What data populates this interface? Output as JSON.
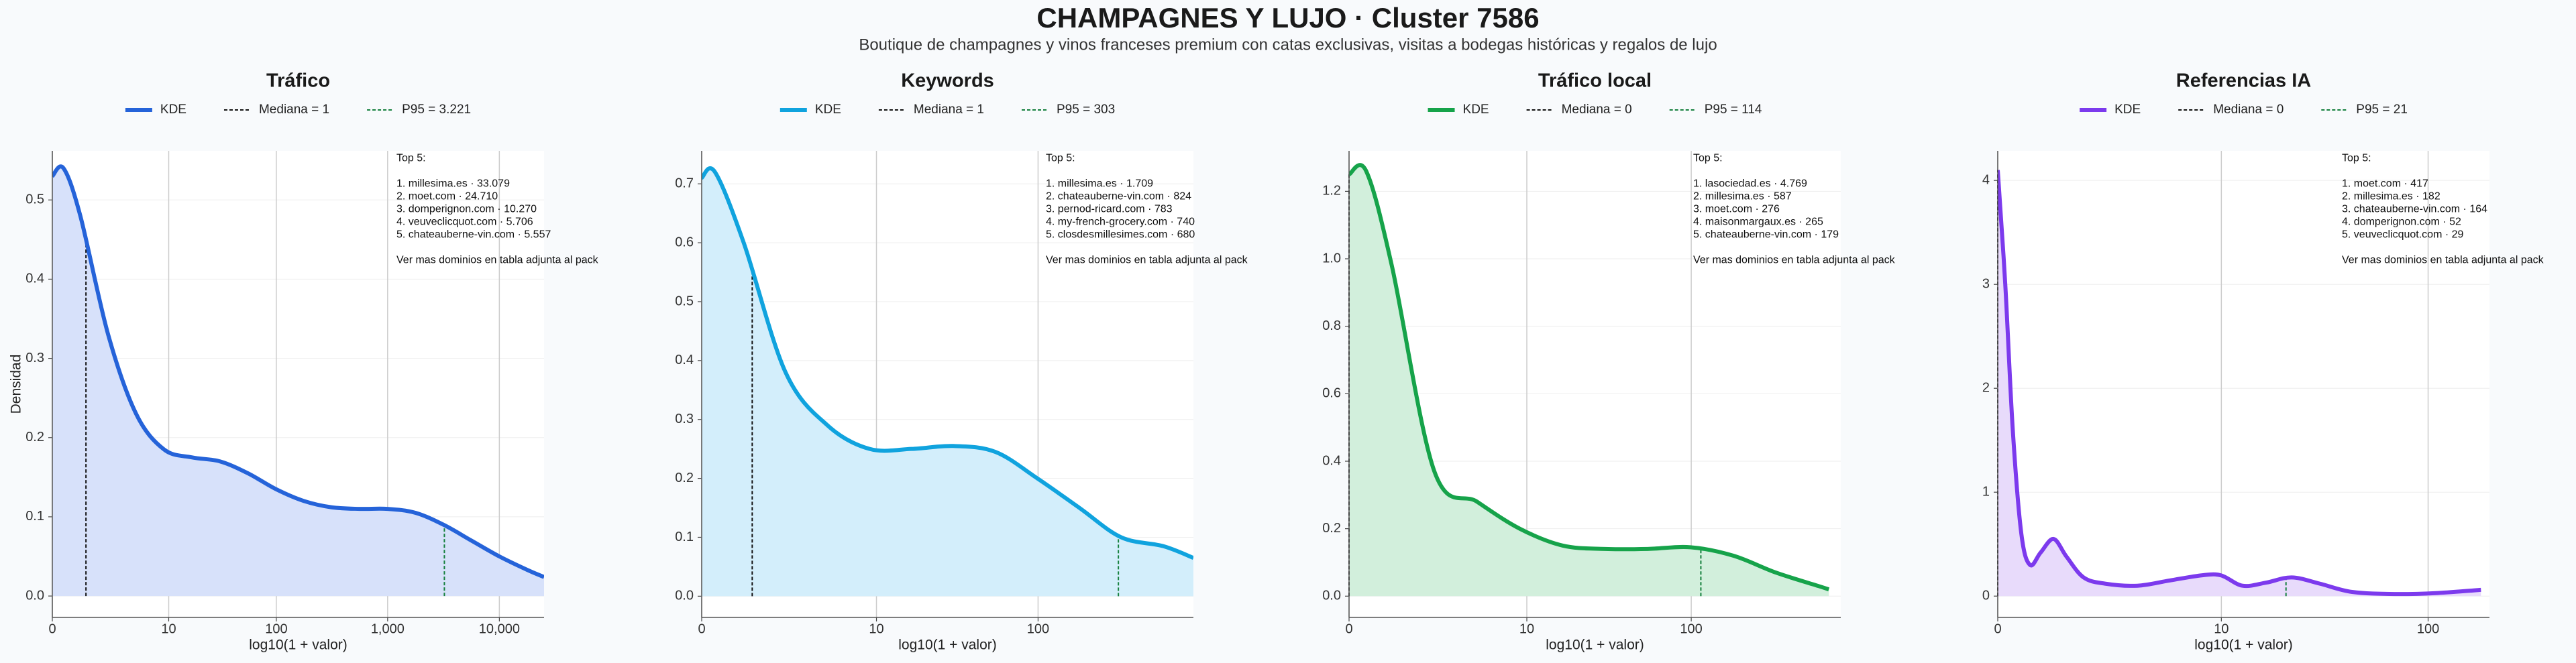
{
  "title": "CHAMPAGNES Y LUJO · Cluster 7586",
  "subtitle": "Boutique de champagnes y vinos franceses premium con catas exclusivas, visitas a bodegas históricas y regalos de lujo",
  "chart_data": [
    {
      "type": "kde",
      "title": "Tráfico",
      "xlabel": "log10(1 + valor)",
      "ylabel": "Densidad",
      "xscale": "log1p",
      "grid": true,
      "color": "#2563d9",
      "fill_color": "#d7e1fa",
      "x": [
        0,
        0.26,
        0.78,
        2.16,
        4.62,
        9,
        16.8,
        30.6,
        55.2,
        99,
        177,
        315,
        561,
        999,
        1777,
        3161,
        5622,
        9999,
        17782,
        25118
      ],
      "values": [
        0.53,
        0.54,
        0.48,
        0.33,
        0.23,
        0.185,
        0.175,
        0.17,
        0.155,
        0.135,
        0.12,
        0.112,
        0.11,
        0.11,
        0.105,
        0.09,
        0.07,
        0.05,
        0.033,
        0.024
      ],
      "xlim": [
        0,
        25118
      ],
      "ylim": [
        -0.027,
        0.562
      ],
      "xticks": [
        0,
        10,
        100,
        {
          "value": 1000,
          "label": "1,000"
        },
        {
          "value": 10000,
          "label": "10,000"
        }
      ],
      "yticks": [
        {
          "value": 0,
          "label": "0.0"
        },
        0.1,
        0.2,
        0.3,
        0.4,
        0.5
      ],
      "legend": [
        "KDE",
        "Mediana = 1",
        "P95 = 3.221"
      ],
      "median": 1,
      "p95": 3221,
      "median_color": "#111111",
      "p95_color": "#15803d",
      "top5_title": "Top 5:",
      "top5": [
        "1. millesima.es · 33.079",
        "2. moet.com · 24.710",
        "3. domperignon.com · 10.270",
        "4. veuveclicquot.com · 5.706",
        "5. chateauberne-vin.com · 5.557"
      ],
      "note": "Ver mas dominios en tabla adjunta al pack"
    },
    {
      "type": "kde",
      "title": "Keywords",
      "xlabel": "log10(1 + valor)",
      "xscale": "log1p",
      "grid": true,
      "color": "#10a3de",
      "fill_color": "#d3eefb",
      "x": [
        0,
        0.2,
        0.78,
        2.16,
        4.62,
        9,
        16.8,
        30.6,
        55.2,
        99,
        177,
        315,
        561,
        850
      ],
      "values": [
        0.71,
        0.72,
        0.6,
        0.38,
        0.29,
        0.25,
        0.25,
        0.255,
        0.245,
        0.2,
        0.15,
        0.1,
        0.085,
        0.065
      ],
      "xlim": [
        0,
        850
      ],
      "ylim": [
        -0.036,
        0.756
      ],
      "xticks": [
        0,
        10,
        100
      ],
      "yticks": [
        {
          "value": 0,
          "label": "0.0"
        },
        0.1,
        0.2,
        0.3,
        0.4,
        0.5,
        0.6,
        0.7
      ],
      "legend": [
        "KDE",
        "Mediana = 1",
        "P95 = 303"
      ],
      "median": 1,
      "p95": 303,
      "median_color": "#111111",
      "p95_color": "#15803d",
      "top5_title": "Top 5:",
      "top5": [
        "1. millesima.es · 1.709",
        "2. chateauberne-vin.com · 824",
        "3. pernod-ricard.com · 783",
        "4. my-french-grocery.com · 740",
        "5. closdesmillesimes.com · 680"
      ],
      "note": "Ver mas dominios en tabla adjunta al pack"
    },
    {
      "type": "kde",
      "title": "Tráfico local",
      "xlabel": "log10(1 + valor)",
      "xscale": "log1p",
      "grid": true,
      "color": "#16a34a",
      "fill_color": "#d2efdc",
      "x": [
        0,
        0.26,
        0.78,
        2.16,
        4.62,
        9,
        16.8,
        30.6,
        55.2,
        99,
        177,
        315,
        561,
        645
      ],
      "values": [
        1.25,
        1.26,
        0.98,
        0.37,
        0.28,
        0.2,
        0.15,
        0.14,
        0.14,
        0.145,
        0.12,
        0.07,
        0.03,
        0.02
      ],
      "xlim": [
        0,
        758
      ],
      "ylim": [
        -0.063,
        1.32
      ],
      "xticks": [
        0,
        10,
        100
      ],
      "yticks": [
        {
          "value": 0,
          "label": "0.0"
        },
        0.2,
        0.4,
        0.6,
        0.8,
        {
          "value": 1,
          "label": "1.0"
        },
        1.2
      ],
      "legend": [
        "KDE",
        "Mediana = 0",
        "P95 = 114"
      ],
      "median": 0,
      "p95": 114,
      "median_color": "#111111",
      "p95_color": "#15803d",
      "top5_title": "Top 5:",
      "top5": [
        "1. lasociedad.es · 4.769",
        "2. millesima.es · 587",
        "3. moet.com · 276",
        "4. maisonmargaux.es · 265",
        "5. chateauberne-vin.com · 179"
      ],
      "note": "Ver mas dominios en tabla adjunta al pack"
    },
    {
      "type": "kde",
      "title": "Referencias IA",
      "xlabel": "log10(1 + valor)",
      "xscale": "log1p",
      "grid": true,
      "color": "#7c3aed",
      "fill_color": "#e8dbfb",
      "x": [
        0,
        0.084,
        0.175,
        0.288,
        0.413,
        0.585,
        0.82,
        1.09,
        1.51,
        2.16,
        3.47,
        5.31,
        7.91,
        9.96,
        12.8,
        16.8,
        22.4,
        30.6,
        43.7,
        69.8,
        111,
        177
      ],
      "values": [
        4.1,
        3.0,
        1.6,
        0.6,
        0.3,
        0.42,
        0.55,
        0.38,
        0.18,
        0.12,
        0.1,
        0.15,
        0.2,
        0.2,
        0.1,
        0.13,
        0.18,
        0.12,
        0.04,
        0.02,
        0.03,
        0.06
      ],
      "xlim": [
        0,
        194
      ],
      "ylim": [
        -0.205,
        4.285
      ],
      "xticks": [
        0,
        10,
        100
      ],
      "yticks": [
        0,
        1,
        2,
        3,
        4
      ],
      "legend": [
        "KDE",
        "Mediana = 0",
        "P95 = 21"
      ],
      "median": 0,
      "p95": 21,
      "median_color": "#111111",
      "p95_color": "#15803d",
      "top5_title": "Top 5:",
      "top5": [
        "1. moet.com · 417",
        "2. millesima.es · 182",
        "3. chateauberne-vin.com · 164",
        "4. domperignon.com · 52",
        "5. veuveclicquot.com · 29"
      ],
      "note": "Ver mas dominios en tabla adjunta al pack"
    }
  ]
}
